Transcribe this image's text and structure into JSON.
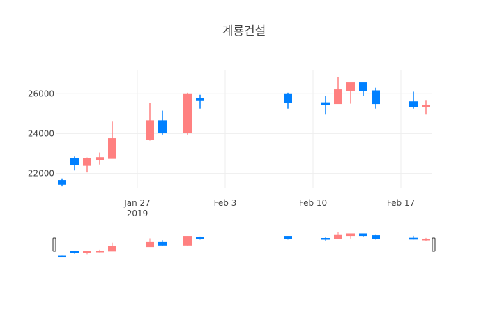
{
  "chart_data": {
    "type": "candlestick",
    "title": "계룡건설",
    "xlabel": "",
    "ylabel": "",
    "grid": true,
    "legend": "none",
    "colors": {
      "increasing": "#ff8080",
      "decreasing": "#0080ff",
      "grid": "#eeeeee",
      "text": "#444444"
    },
    "x_ticks": [
      {
        "date": "2019-01-27",
        "label": "Jan 27",
        "sublabel": "2019"
      },
      {
        "date": "2019-02-03",
        "label": "Feb 3",
        "sublabel": ""
      },
      {
        "date": "2019-02-10",
        "label": "Feb 10",
        "sublabel": ""
      },
      {
        "date": "2019-02-17",
        "label": "Feb 17",
        "sublabel": ""
      }
    ],
    "y_ticks": [
      22000,
      24000,
      26000
    ],
    "y_tick_labels": [
      "22000",
      "24000",
      "26000"
    ],
    "ylim": [
      21250,
      27200
    ],
    "xlim": [
      "2019-01-21",
      "2019-02-19"
    ],
    "candles": [
      {
        "date": "2019-01-21",
        "open": 21650,
        "high": 21750,
        "low": 21350,
        "close": 21450
      },
      {
        "date": "2019-01-22",
        "open": 22750,
        "high": 22850,
        "low": 22150,
        "close": 22450
      },
      {
        "date": "2019-01-23",
        "open": 22400,
        "high": 22800,
        "low": 22050,
        "close": 22750
      },
      {
        "date": "2019-01-24",
        "open": 22700,
        "high": 23050,
        "low": 22450,
        "close": 22800
      },
      {
        "date": "2019-01-25",
        "open": 22750,
        "high": 24600,
        "low": 22750,
        "close": 23750
      },
      {
        "date": "2019-01-28",
        "open": 23700,
        "high": 25550,
        "low": 23650,
        "close": 24650
      },
      {
        "date": "2019-01-29",
        "open": 24650,
        "high": 25150,
        "low": 23950,
        "close": 24050
      },
      {
        "date": "2019-01-31",
        "open": 24050,
        "high": 26050,
        "low": 23950,
        "close": 26000
      },
      {
        "date": "2019-02-01",
        "open": 25750,
        "high": 25950,
        "low": 25250,
        "close": 25650
      },
      {
        "date": "2019-02-08",
        "open": 26000,
        "high": 26050,
        "low": 25250,
        "close": 25550
      },
      {
        "date": "2019-02-11",
        "open": 25550,
        "high": 25900,
        "low": 24950,
        "close": 25450
      },
      {
        "date": "2019-02-12",
        "open": 25500,
        "high": 26850,
        "low": 25500,
        "close": 26200
      },
      {
        "date": "2019-02-13",
        "open": 26150,
        "high": 26550,
        "low": 25500,
        "close": 26550
      },
      {
        "date": "2019-02-14",
        "open": 26550,
        "high": 26550,
        "low": 25900,
        "close": 26150
      },
      {
        "date": "2019-02-15",
        "open": 26150,
        "high": 26300,
        "low": 25250,
        "close": 25500
      },
      {
        "date": "2019-02-18",
        "open": 25600,
        "high": 26100,
        "low": 25250,
        "close": 25350
      },
      {
        "date": "2019-02-19",
        "open": 25350,
        "high": 25650,
        "low": 24950,
        "close": 25400
      }
    ],
    "rangeslider": true
  }
}
